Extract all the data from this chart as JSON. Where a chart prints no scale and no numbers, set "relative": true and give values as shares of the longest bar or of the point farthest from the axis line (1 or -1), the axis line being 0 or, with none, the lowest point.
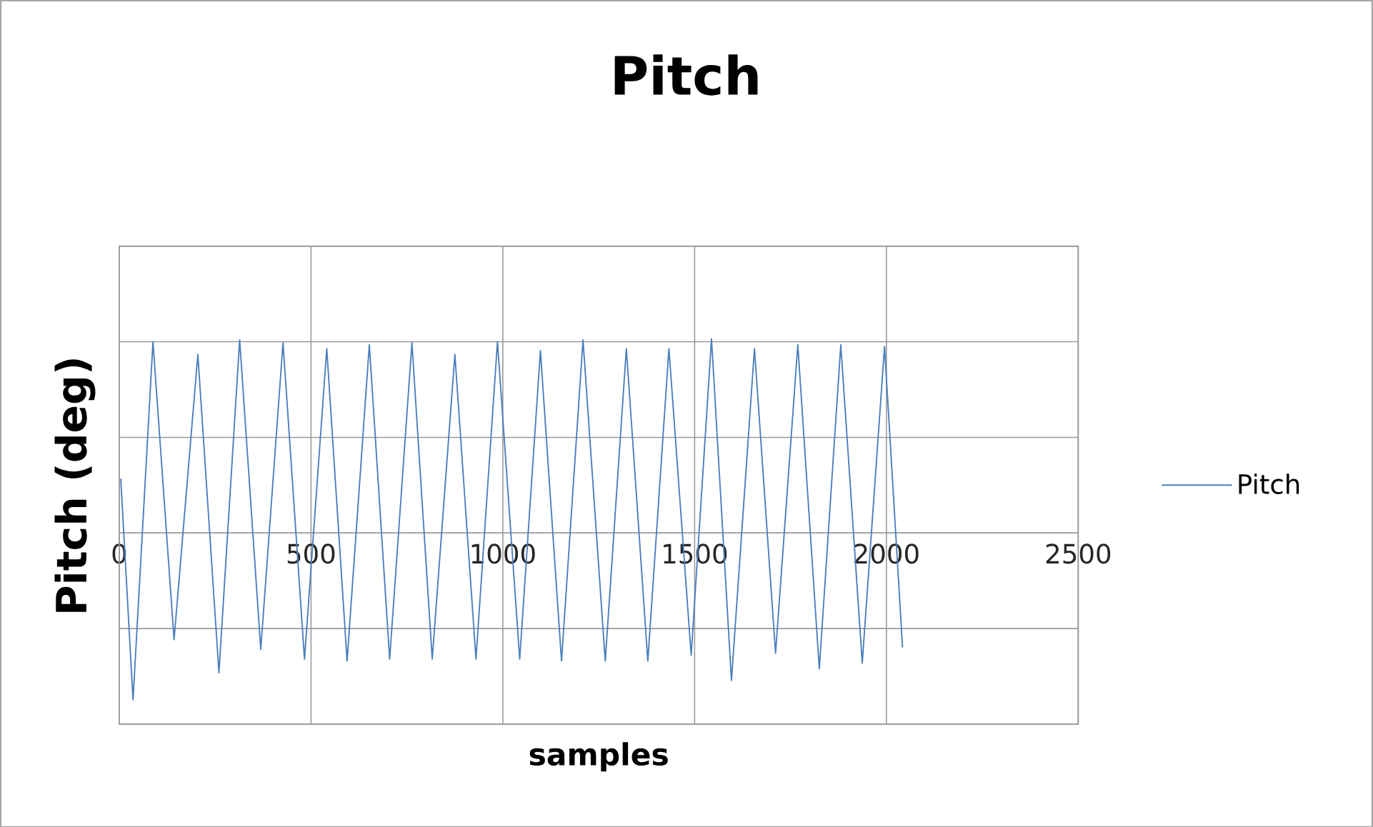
{
  "chart_data": {
    "type": "line",
    "title": "Pitch",
    "xlabel": "samples",
    "ylabel": "Pitch  (deg)",
    "relative": true,
    "xlim": [
      0,
      2500
    ],
    "xticks": [
      0,
      500,
      1000,
      1500,
      2000,
      2500
    ],
    "grid": true,
    "legend": "right",
    "series": [
      {
        "name": "Pitch",
        "color": "#4a7ebb",
        "x": [
          4,
          36,
          88,
          143,
          205,
          260,
          314,
          369,
          427,
          483,
          541,
          594,
          652,
          705,
          763,
          816,
          875,
          930,
          986,
          1044,
          1098,
          1153,
          1209,
          1267,
          1322,
          1378,
          1433,
          1491,
          1544,
          1596,
          1656,
          1711,
          1769,
          1825,
          1881,
          1937,
          1995,
          2042
        ],
        "values": [
          0.28,
          -0.86,
          0.985,
          -0.55,
          0.92,
          -0.72,
          0.995,
          -0.6,
          0.98,
          -0.65,
          0.95,
          -0.66,
          0.97,
          -0.65,
          0.98,
          -0.65,
          0.92,
          -0.65,
          0.985,
          -0.65,
          0.94,
          -0.66,
          0.995,
          -0.66,
          0.95,
          -0.66,
          0.95,
          -0.63,
          1.0,
          -0.76,
          0.95,
          -0.62,
          0.97,
          -0.7,
          0.97,
          -0.67,
          0.96,
          -0.59
        ]
      }
    ]
  }
}
